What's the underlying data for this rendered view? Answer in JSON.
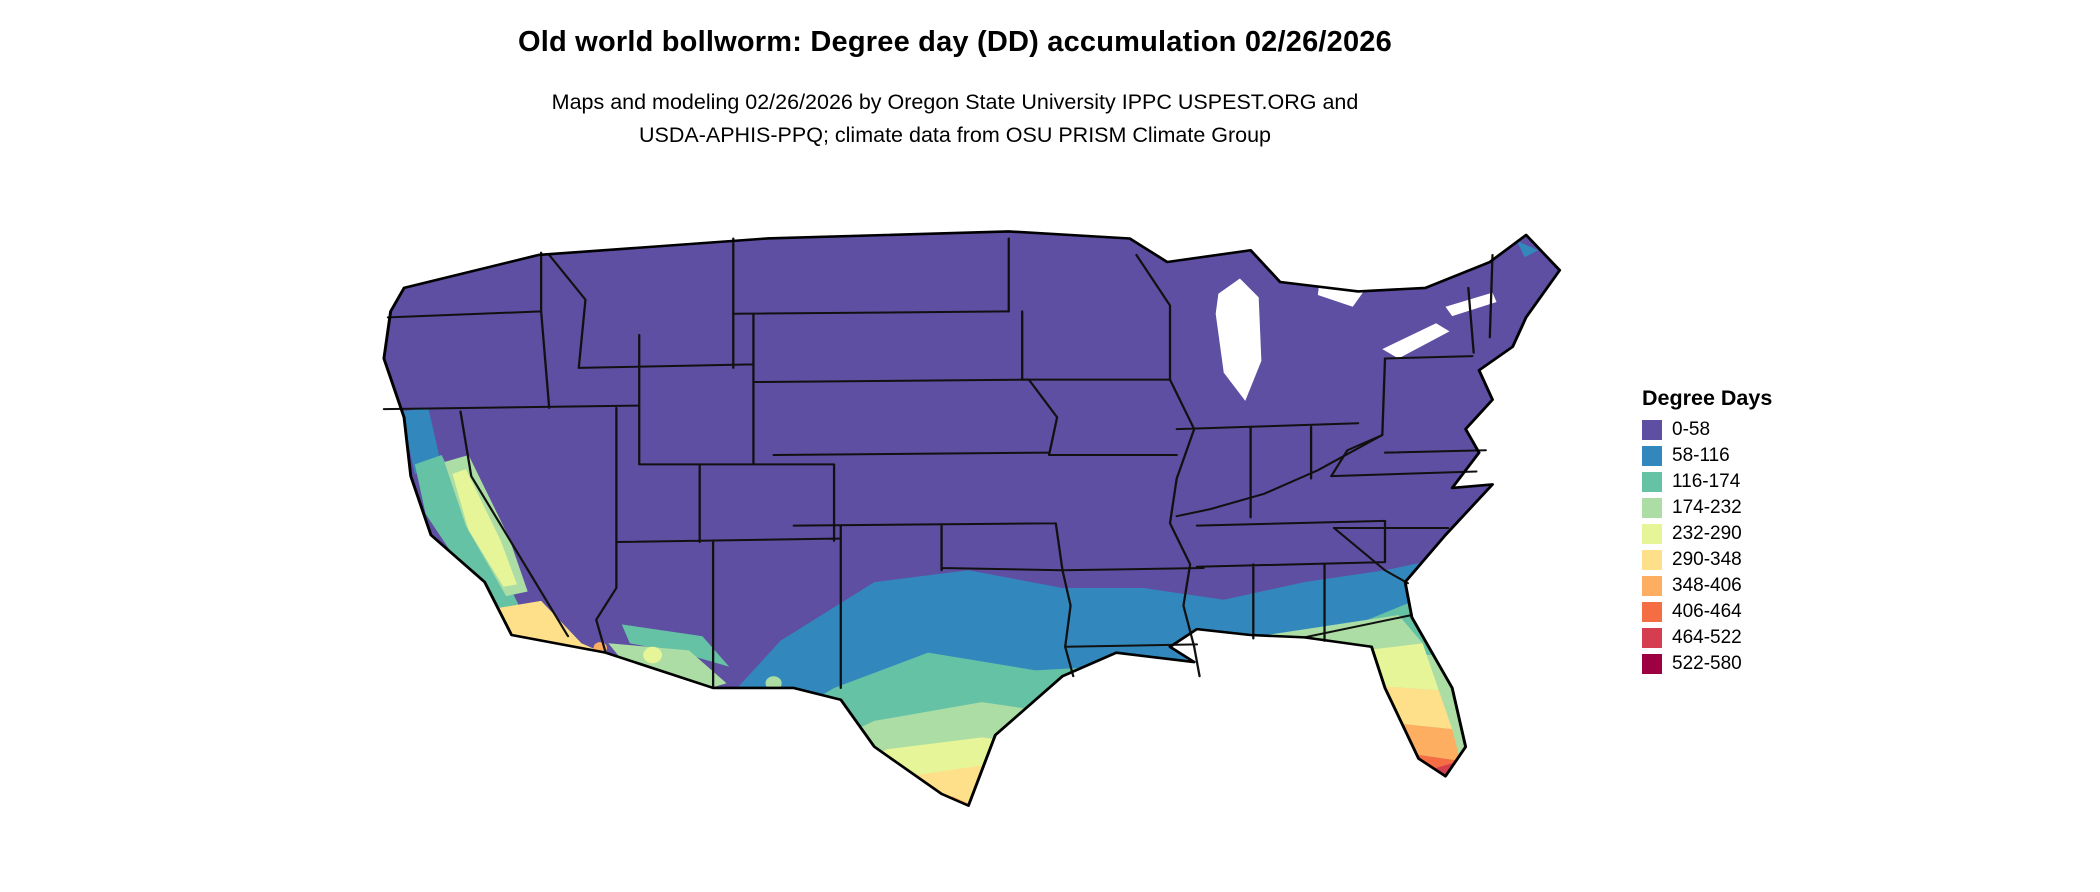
{
  "title": "Old world bollworm: Degree day (DD) accumulation 02/26/2026",
  "subtitle_line1": "Maps and modeling 02/26/2026 by Oregon State University IPPC USPEST.ORG and",
  "subtitle_line2": "USDA-APHIS-PPQ; climate data from OSU PRISM Climate Group",
  "map": {
    "region": "Contiguous United States",
    "type": "degree-day accumulation raster map",
    "border_color": "#000000",
    "background_color": "#ffffff"
  },
  "legend": {
    "title": "Degree Days",
    "bins": [
      {
        "label": "0-58",
        "color": "#5e4fa2"
      },
      {
        "label": "58-116",
        "color": "#3288bd"
      },
      {
        "label": "116-174",
        "color": "#66c2a5"
      },
      {
        "label": "174-232",
        "color": "#abdda4"
      },
      {
        "label": "232-290",
        "color": "#e6f598"
      },
      {
        "label": "290-348",
        "color": "#fee08b"
      },
      {
        "label": "348-406",
        "color": "#fdae61"
      },
      {
        "label": "406-464",
        "color": "#f46d43"
      },
      {
        "label": "464-522",
        "color": "#d53e4f"
      },
      {
        "label": "522-580",
        "color": "#9e0142"
      }
    ]
  }
}
